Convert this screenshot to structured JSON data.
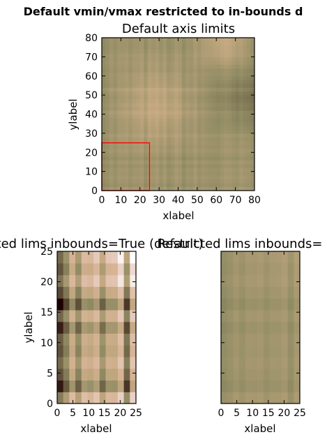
{
  "figure": {
    "suptitle": "Default vmin/vmax restricted to in-bounds d"
  },
  "chart_data": [
    {
      "type": "heatmap",
      "title": "Default axis limits",
      "xlabel": "xlabel",
      "ylabel": "ylabel",
      "xlim": [
        0,
        80
      ],
      "ylim": [
        0,
        80
      ],
      "xticks": [
        "0",
        "10",
        "20",
        "30",
        "40",
        "50",
        "60",
        "70",
        "80"
      ],
      "yticks": [
        "0",
        "10",
        "20",
        "30",
        "40",
        "50",
        "60",
        "70",
        "80"
      ],
      "colormap": "pink",
      "highlight_box": {
        "x": [
          0,
          25
        ],
        "y": [
          0,
          25
        ],
        "color": "#ff0000"
      }
    },
    {
      "type": "heatmap",
      "title": "cted lims inbounds=True (default)",
      "xlabel": "xlabel",
      "ylabel": "ylabel",
      "xlim": [
        0,
        25
      ],
      "ylim": [
        0,
        25
      ],
      "xticks": [
        "0",
        "5",
        "10",
        "15",
        "20",
        "25"
      ],
      "yticks": [
        "0",
        "5",
        "10",
        "15",
        "20",
        "25"
      ],
      "colormap": "pink"
    },
    {
      "type": "heatmap",
      "title": "Restricted lims inbounds=",
      "xlabel": "xlabel",
      "ylabel": "",
      "xlim": [
        0,
        25
      ],
      "ylim": [
        0,
        25
      ],
      "xticks": [
        "0",
        "5",
        "10",
        "15",
        "20",
        "25"
      ],
      "yticks": [],
      "colormap": "pink"
    }
  ]
}
